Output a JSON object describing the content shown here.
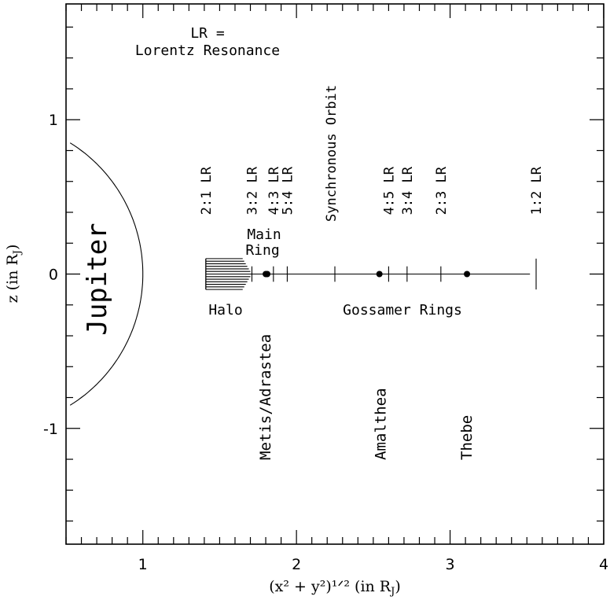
{
  "axes": {
    "xlabel": "(x² + y²)¹ᐟ² (in R",
    "xlabel_sub": "J",
    "xlabel_close": ")",
    "ylabel": "z (in R",
    "ylabel_sub": "J",
    "ylabel_close": ")",
    "xlim": [
      0.5,
      4.0
    ],
    "ylim": [
      -1.75,
      1.75
    ],
    "xticks_major": [
      {
        "value": 1,
        "label": "1"
      },
      {
        "value": 2,
        "label": "2"
      },
      {
        "value": 3,
        "label": "3"
      },
      {
        "value": 4,
        "label": "4"
      }
    ],
    "yticks_major": [
      {
        "value": 1,
        "label": "1"
      },
      {
        "value": 0,
        "label": "0"
      },
      {
        "value": -1,
        "label": "-1"
      }
    ],
    "x_minor_step": 0.1,
    "y_minor_step": 0.2
  },
  "legend": {
    "line1": "LR =",
    "line2": "Lorentz Resonance"
  },
  "planet": {
    "label": "Jupiter",
    "radius": 1.0
  },
  "ring_plane": {
    "x_start": 1.41,
    "x_end": 3.52
  },
  "halo": {
    "label": "Halo",
    "x_start": 1.41,
    "x_end": 1.71,
    "half_height": 0.1,
    "line_count": 13
  },
  "main_ring": {
    "label_line1": "Main",
    "label_line2": "Ring"
  },
  "gossamer": {
    "label": "Gossamer Rings"
  },
  "resonances": [
    {
      "label": "2:1 LR",
      "x": 1.41
    },
    {
      "label": "3:2 LR",
      "x": 1.71
    },
    {
      "label": "4:3 LR",
      "x": 1.85
    },
    {
      "label": "5:4 LR",
      "x": 1.94
    },
    {
      "label": "4:5 LR",
      "x": 2.6
    },
    {
      "label": "3:4 LR",
      "x": 2.72
    },
    {
      "label": "2:3 LR",
      "x": 2.94
    },
    {
      "label": "1:2 LR",
      "x": 3.56
    }
  ],
  "synchronous_orbit": {
    "label": "Synchronous Orbit",
    "x": 2.25
  },
  "moons": [
    {
      "label": "Metis/Adrastea",
      "x": 1.8,
      "x2": 1.81
    },
    {
      "label": "Amalthea",
      "x": 2.54
    },
    {
      "label": "Thebe",
      "x": 3.11
    }
  ]
}
